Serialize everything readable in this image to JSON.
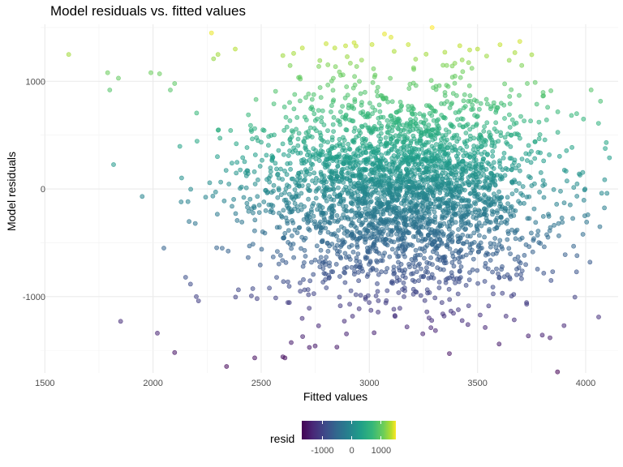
{
  "chart_data": {
    "type": "scatter",
    "title": "Model residuals vs. fitted values",
    "xlabel": "Fitted values",
    "ylabel": "Model residuals",
    "xlim": [
      1480,
      4150
    ],
    "ylim": [
      -1710,
      1530
    ],
    "x_ticks": [
      1500,
      2000,
      2500,
      3000,
      3500,
      4000
    ],
    "x_tick_labels": [
      "1500",
      "2000",
      "2500",
      "3000",
      "3500",
      "4000"
    ],
    "y_ticks": [
      -1000,
      0,
      1000
    ],
    "y_tick_labels": [
      "-1000",
      "0",
      "1000"
    ],
    "grid": true,
    "color_scale": "viridis",
    "color_range": [
      -1700,
      1500
    ],
    "point_alpha": 0.55,
    "legend": {
      "title": "resid",
      "placement": "bottom",
      "tick_labels": [
        "-1000",
        "0",
        "1000"
      ],
      "tick_values": [
        -1000,
        0,
        1000
      ]
    },
    "point_cloud": {
      "n_points": 3100,
      "x_center": 3150,
      "x_sd": 330,
      "y_center": 0,
      "y_sd": 480
    },
    "points": [
      {
        "x": 1610,
        "y": 1250
      },
      {
        "x": 1790,
        "y": 1080
      },
      {
        "x": 1800,
        "y": 920
      },
      {
        "x": 1840,
        "y": 1030
      },
      {
        "x": 1990,
        "y": 1080
      },
      {
        "x": 2030,
        "y": 1070
      },
      {
        "x": 2080,
        "y": 920
      },
      {
        "x": 2100,
        "y": 980
      },
      {
        "x": 2270,
        "y": 1450
      },
      {
        "x": 2280,
        "y": 1210
      },
      {
        "x": 2300,
        "y": 1250
      },
      {
        "x": 2380,
        "y": 1300
      },
      {
        "x": 2600,
        "y": 1240
      },
      {
        "x": 2650,
        "y": 1260
      },
      {
        "x": 2690,
        "y": 1310
      },
      {
        "x": 2800,
        "y": 1350
      },
      {
        "x": 2840,
        "y": 1310
      },
      {
        "x": 2890,
        "y": 1330
      },
      {
        "x": 3070,
        "y": 1440
      },
      {
        "x": 3100,
        "y": 1410
      },
      {
        "x": 3290,
        "y": 1500
      },
      {
        "x": 3500,
        "y": 1300
      },
      {
        "x": 3730,
        "y": 980
      },
      {
        "x": 3990,
        "y": 650
      },
      {
        "x": 4110,
        "y": 290
      },
      {
        "x": 3970,
        "y": 140
      },
      {
        "x": 1950,
        "y": -70
      },
      {
        "x": 2130,
        "y": -120
      },
      {
        "x": 2050,
        "y": -550
      },
      {
        "x": 1850,
        "y": -1230
      },
      {
        "x": 2020,
        "y": -1340
      },
      {
        "x": 2100,
        "y": -1520
      },
      {
        "x": 2200,
        "y": -1000
      },
      {
        "x": 2210,
        "y": -1040
      },
      {
        "x": 2340,
        "y": -1650
      },
      {
        "x": 2470,
        "y": -1570
      },
      {
        "x": 2600,
        "y": -1560
      },
      {
        "x": 2610,
        "y": -1570
      },
      {
        "x": 2850,
        "y": -1470
      },
      {
        "x": 3370,
        "y": -1530
      },
      {
        "x": 3870,
        "y": -1700
      },
      {
        "x": 3900,
        "y": -1270
      },
      {
        "x": 4060,
        "y": -1190
      },
      {
        "x": 4020,
        "y": -680
      },
      {
        "x": 4010,
        "y": -240
      },
      {
        "x": 3890,
        "y": -270
      },
      {
        "x": 3960,
        "y": -620
      }
    ]
  }
}
